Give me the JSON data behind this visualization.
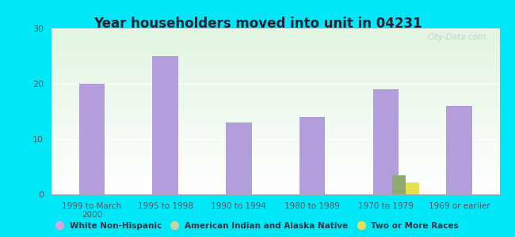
{
  "title": "Year householders moved into unit in 04231",
  "categories": [
    "1999 to March\n2000",
    "1995 to 1998",
    "1990 to 1994",
    "1980 to 1989",
    "1970 to 1979",
    "1969 or earlier"
  ],
  "series": {
    "White Non-Hispanic": [
      20,
      25,
      13,
      14,
      19,
      16
    ],
    "American Indian and Alaska Native": [
      0,
      0,
      0,
      0,
      3.5,
      0
    ],
    "Two or More Races": [
      0,
      0,
      0,
      0,
      2.2,
      0
    ]
  },
  "colors": {
    "White Non-Hispanic": "#b39ddb",
    "American Indian and Alaska Native": "#8faa6e",
    "Two or More Races": "#e4e050"
  },
  "legend_colors": {
    "White Non-Hispanic": "#d4a8d8",
    "American Indian and Alaska Native": "#c8d4a0",
    "Two or More Races": "#e8e050"
  },
  "ylim": [
    0,
    30
  ],
  "yticks": [
    0,
    10,
    20,
    30
  ],
  "bg_outer": "#00e8f8",
  "watermark": "City-Data.com",
  "bar_width": 0.35,
  "sub_bar_width": 0.18
}
